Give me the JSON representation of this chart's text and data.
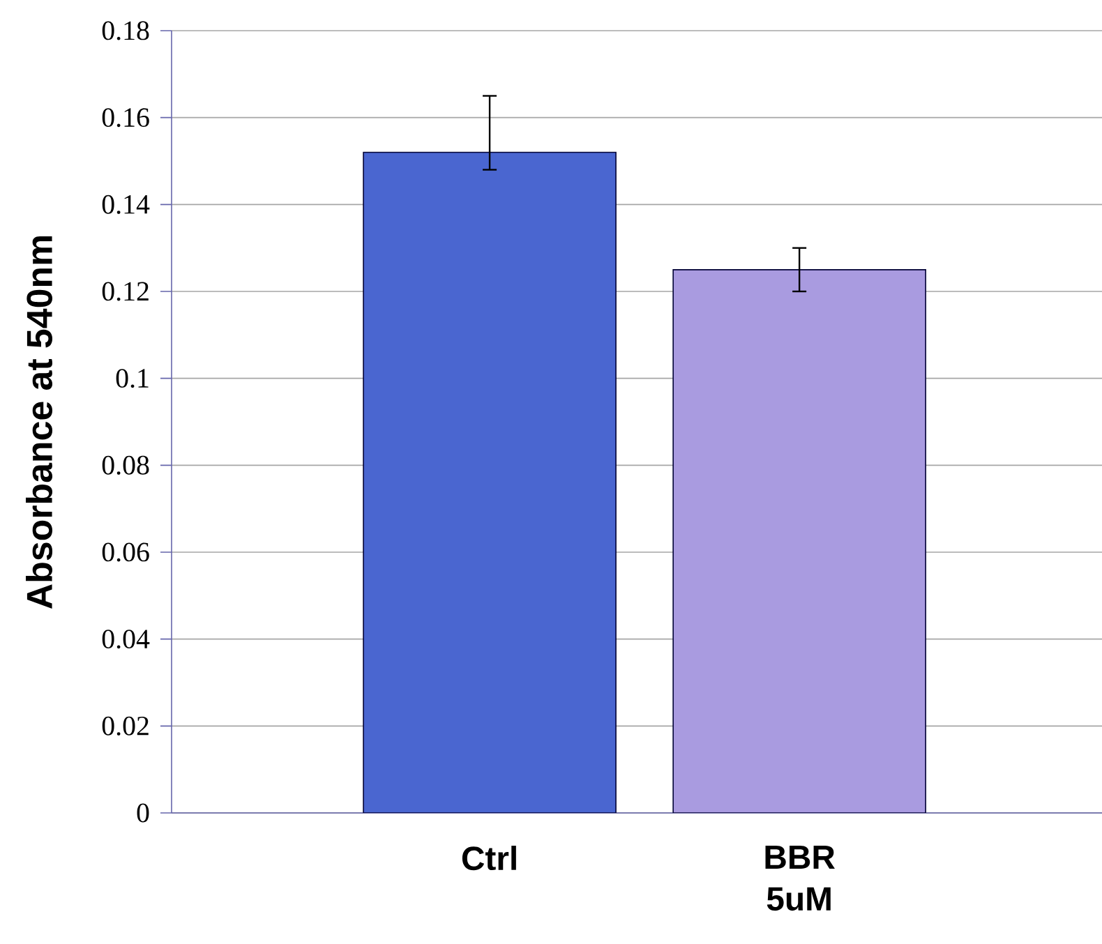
{
  "chart_data": {
    "type": "bar",
    "ylabel": "Absorbance at 540nm",
    "categories": [
      "Ctrl",
      "BBR 5uM"
    ],
    "values": [
      0.152,
      0.125
    ],
    "colors": [
      "#4a66d0",
      "#a99be0"
    ],
    "errors": [
      [
        0.148,
        0.165
      ],
      [
        0.12,
        0.13
      ]
    ],
    "ylim": [
      0,
      0.18
    ],
    "yticks": [
      0,
      0.02,
      0.04,
      0.06,
      0.08,
      0.1,
      0.12,
      0.14,
      0.16,
      0.18
    ],
    "grid": "y"
  }
}
